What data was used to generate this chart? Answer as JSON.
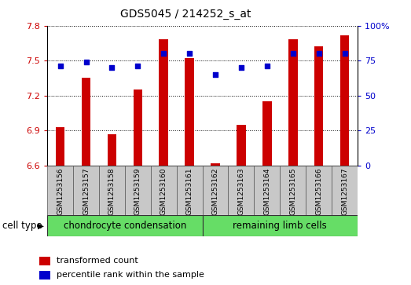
{
  "title": "GDS5045 / 214252_s_at",
  "samples": [
    "GSM1253156",
    "GSM1253157",
    "GSM1253158",
    "GSM1253159",
    "GSM1253160",
    "GSM1253161",
    "GSM1253162",
    "GSM1253163",
    "GSM1253164",
    "GSM1253165",
    "GSM1253166",
    "GSM1253167"
  ],
  "transformed_count": [
    6.93,
    7.35,
    6.87,
    7.25,
    7.68,
    7.52,
    6.62,
    6.95,
    7.15,
    7.68,
    7.62,
    7.72
  ],
  "percentile_rank": [
    71,
    74,
    70,
    71,
    80,
    80,
    65,
    70,
    71,
    80,
    80,
    80
  ],
  "ylim_left": [
    6.6,
    7.8
  ],
  "ylim_right": [
    0,
    100
  ],
  "yticks_left": [
    6.6,
    6.9,
    7.2,
    7.5,
    7.8
  ],
  "yticks_right": [
    0,
    25,
    50,
    75,
    100
  ],
  "bar_color": "#cc0000",
  "dot_color": "#0000cc",
  "group1_label": "chondrocyte condensation",
  "group2_label": "remaining limb cells",
  "group1_count": 6,
  "group2_count": 6,
  "cell_type_label": "cell type",
  "legend_bar_label": "transformed count",
  "legend_dot_label": "percentile rank within the sample",
  "sample_bg_color": "#c8c8c8",
  "group_bg_color": "#66dd66",
  "fig_bg_color": "#ffffff",
  "title_fontsize": 10,
  "tick_fontsize": 8,
  "sample_fontsize": 6.5,
  "group_fontsize": 8.5,
  "legend_fontsize": 8,
  "bar_width": 0.35
}
